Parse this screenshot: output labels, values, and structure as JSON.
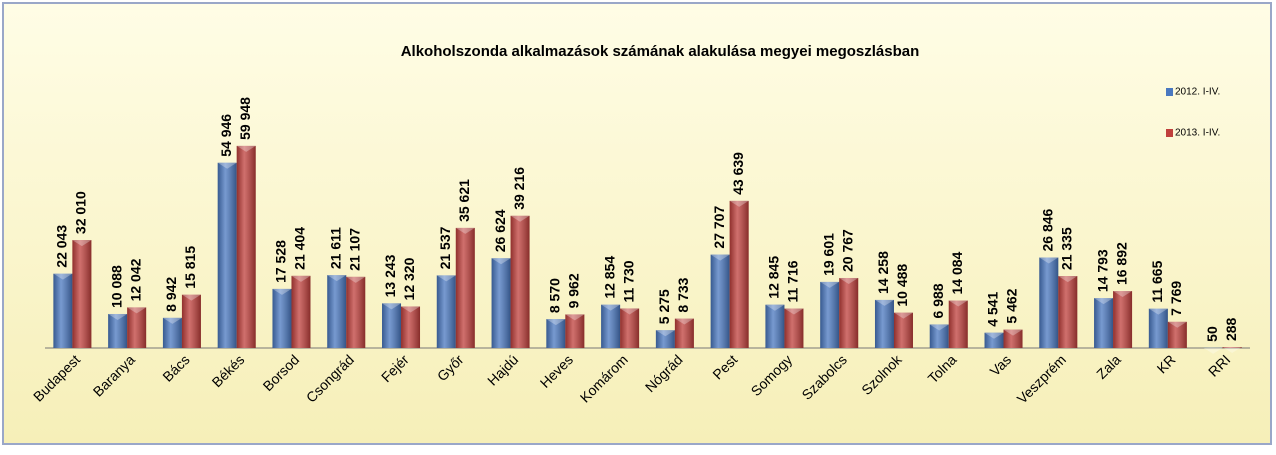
{
  "chart_data": {
    "type": "bar",
    "title": "Alkoholszonda alkalmazások számának alakulása megyei megoszlásban",
    "categories": [
      "Budapest",
      "Baranya",
      "Bács",
      "Békés",
      "Borsod",
      "Csongrád",
      "Fejér",
      "Győr",
      "Hajdú",
      "Heves",
      "Komárom",
      "Nógrád",
      "Pest",
      "Somogy",
      "Szabolcs",
      "Szolnok",
      "Tolna",
      "Vas",
      "Veszprém",
      "Zala",
      "KR",
      "RRI"
    ],
    "series": [
      {
        "name": "2012. I-IV.",
        "color": "#4a78c0",
        "values": [
          22043,
          10088,
          8942,
          54946,
          17528,
          21611,
          13243,
          21537,
          26624,
          8570,
          12854,
          5275,
          27707,
          12845,
          19601,
          14258,
          6988,
          4541,
          26846,
          14793,
          11665,
          50
        ],
        "value_labels": [
          "22 043",
          "10 088",
          "8 942",
          "54 946",
          "17 528",
          "21 611",
          "13 243",
          "21 537",
          "26 624",
          "8 570",
          "12 854",
          "5 275",
          "27 707",
          "12 845",
          "19 601",
          "14 258",
          "6 988",
          "4 541",
          "26 846",
          "14 793",
          "11 665",
          "50"
        ]
      },
      {
        "name": "2013. I-IV.",
        "color": "#c0403c",
        "values": [
          32010,
          12042,
          15815,
          59948,
          21404,
          21107,
          12320,
          35621,
          39216,
          9962,
          11730,
          8733,
          43639,
          11716,
          20767,
          10488,
          14084,
          5462,
          21335,
          16892,
          7769,
          288
        ],
        "value_labels": [
          "32 010",
          "12 042",
          "15 815",
          "59 948",
          "21 404",
          "21 107",
          "12 320",
          "35 621",
          "39 216",
          "9 962",
          "11 730",
          "8 733",
          "43 639",
          "11 716",
          "20 767",
          "10 488",
          "14 084",
          "5 462",
          "21 335",
          "16 892",
          "7 769",
          "288"
        ]
      }
    ],
    "ylim": [
      0,
      70000
    ],
    "legend": "right"
  }
}
